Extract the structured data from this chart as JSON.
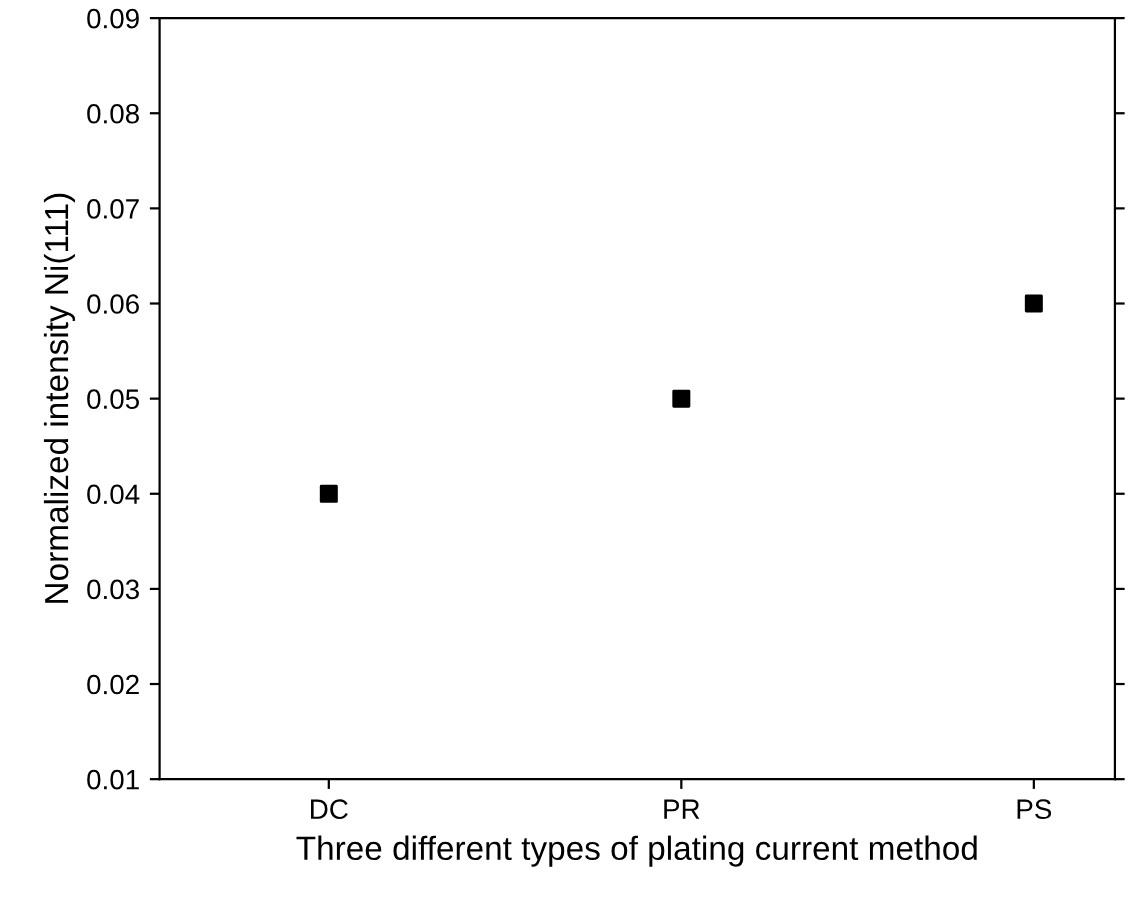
{
  "chart_data": {
    "type": "scatter",
    "xlabel": "Three different types of plating current method",
    "ylabel": "Normalized intensity Ni(111)",
    "categories": [
      "DC",
      "PR",
      "PS"
    ],
    "series": [
      {
        "color": "#000000",
        "values": [
          0.04,
          0.05,
          0.06
        ]
      }
    ],
    "ylim": [
      0.01,
      0.09
    ],
    "yticks": [
      0.01,
      0.02,
      0.03,
      0.04,
      0.05,
      0.06,
      0.07,
      0.08,
      0.09
    ],
    "marker": "square",
    "grid": false,
    "legend": false
  }
}
